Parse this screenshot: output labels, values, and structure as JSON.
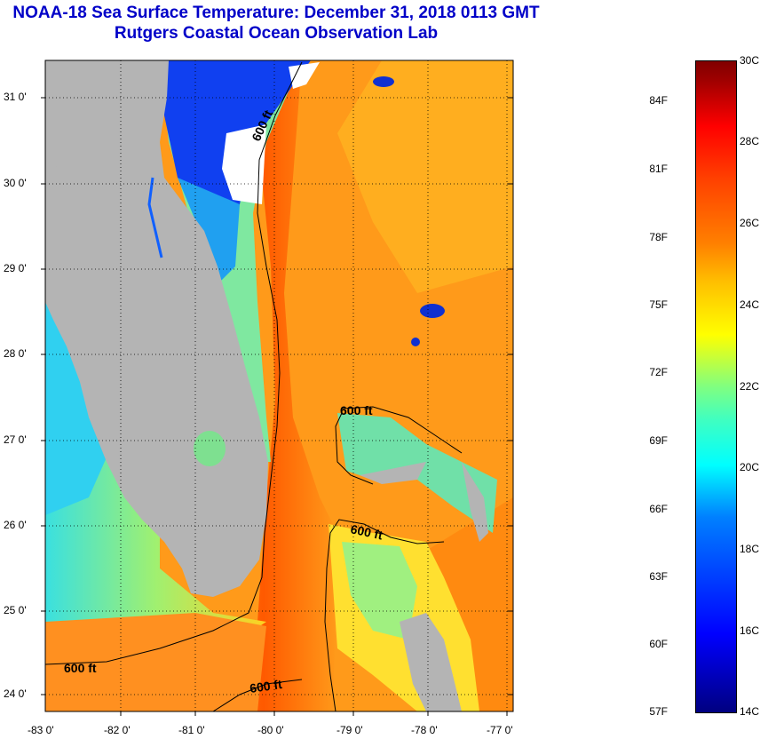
{
  "title": {
    "line1": "NOAA-18 Sea Surface Temperature:  December 31, 2018 0113 GMT",
    "line2": "Rutgers Coastal Ocean Observation Lab"
  },
  "map": {
    "latitudes": [
      "31 0'",
      "30 0'",
      "29 0'",
      "28 0'",
      "27 0'",
      "26 0'",
      "25 0'",
      "24 0'"
    ],
    "longitudes": [
      "-83 0'",
      "-82 0'",
      "-81 0'",
      "-80 0'",
      "-79 0'",
      "-78 0'",
      "-77 0'"
    ],
    "contour_labels": [
      "600 ft",
      "600 ft",
      "600 ft",
      "600 ft",
      "600 ft"
    ],
    "colors": {
      "land": "#b4b4b4",
      "gulf_stream": "#ff6a00",
      "warm": "#ff9a10",
      "cool": "#40e0c0",
      "cold": "#0040ff",
      "cloud": "#ffffff"
    }
  },
  "colorbar": {
    "celsius": [
      "30C",
      "28C",
      "26C",
      "24C",
      "22C",
      "20C",
      "18C",
      "16C",
      "14C"
    ],
    "fahrenheit": [
      "84F",
      "81F",
      "78F",
      "75F",
      "72F",
      "69F",
      "66F",
      "63F",
      "60F",
      "57F"
    ]
  }
}
